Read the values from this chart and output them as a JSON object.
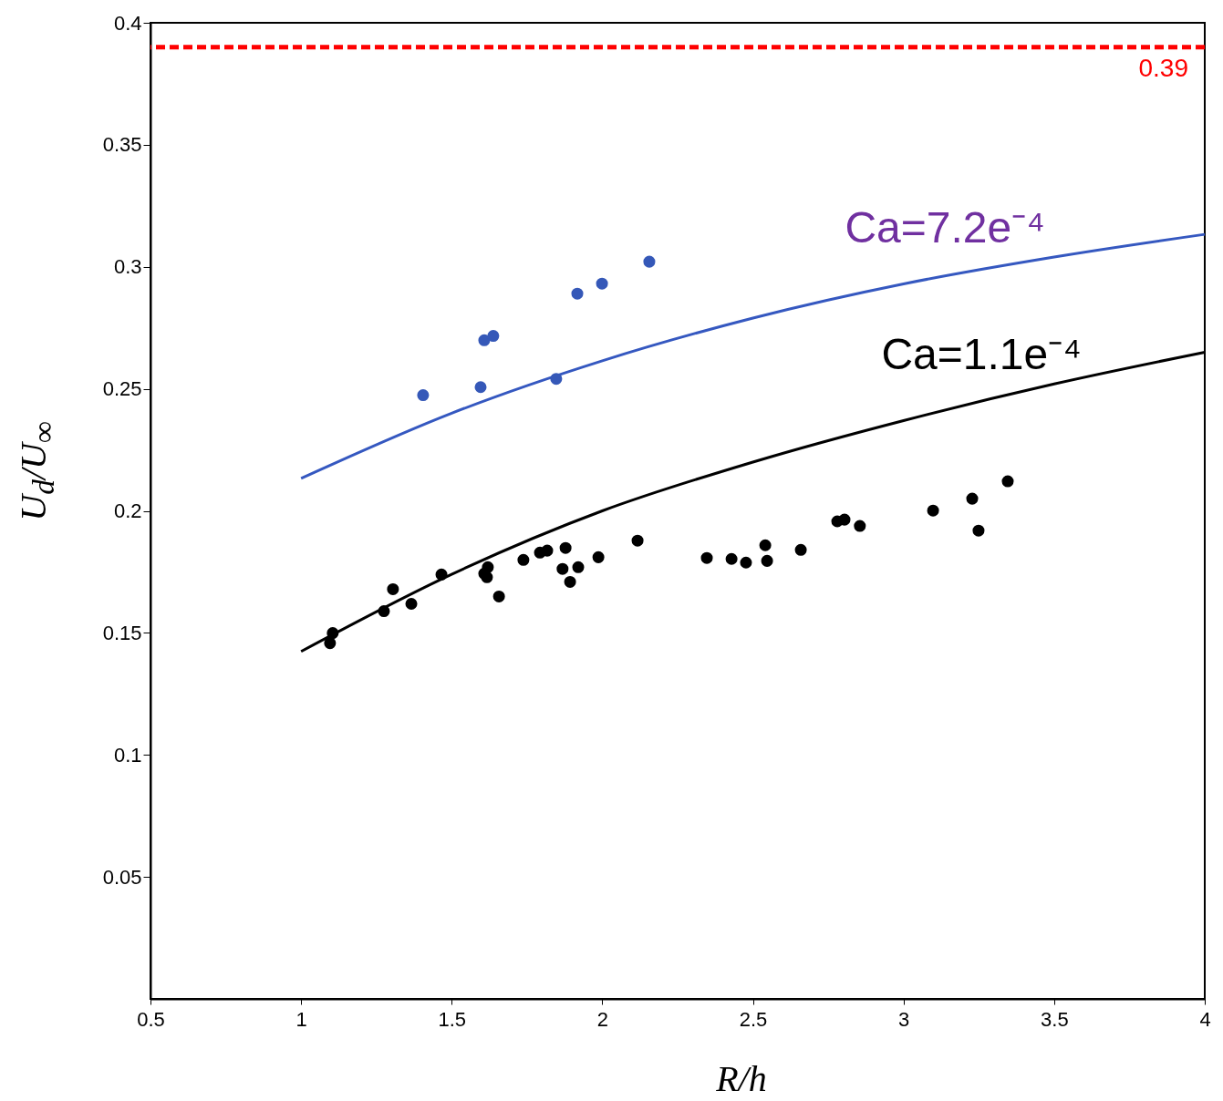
{
  "chart_data": {
    "type": "scatter",
    "xlabel": "R/h",
    "ylabel": "U$_{d}$/U$_{∞}$",
    "xlim": [
      0.5,
      4
    ],
    "ylim": [
      0,
      0.4
    ],
    "xticks": [
      0.5,
      1,
      1.5,
      2,
      2.5,
      3,
      3.5,
      4
    ],
    "yticks": [
      0.05,
      0.1,
      0.15,
      0.2,
      0.25,
      0.3,
      0.35,
      0.4
    ],
    "series": [
      {
        "type": "line",
        "color": "#3558c0",
        "x": [
          1,
          1.5,
          2,
          2.5,
          3,
          3.5,
          4
        ],
        "values": [
          0.2133,
          0.24,
          0.2615,
          0.279,
          0.293,
          0.304,
          0.3133
        ]
      },
      {
        "type": "line",
        "color": "#000000",
        "x": [
          1,
          1.5,
          2,
          2.5,
          3,
          3.5,
          4
        ],
        "values": [
          0.1424,
          0.174,
          0.2,
          0.22,
          0.237,
          0.252,
          0.265
        ]
      },
      {
        "color": "#3558b8",
        "x": [
          1.405,
          1.596,
          1.608,
          1.638,
          1.847,
          1.917,
          1.999,
          2.156
        ],
        "values": [
          0.2474,
          0.2507,
          0.2699,
          0.2717,
          0.2541,
          0.289,
          0.2931,
          0.3021
        ]
      },
      {
        "color": "#000000",
        "x": [
          1.096,
          1.105,
          1.275,
          1.305,
          1.366,
          1.466,
          1.608,
          1.62,
          1.617,
          1.657,
          1.738,
          1.793,
          1.817,
          1.878,
          1.868,
          1.893,
          1.92,
          1.987,
          2.117,
          2.347,
          2.429,
          2.477,
          2.541,
          2.547,
          2.659,
          2.78,
          2.804,
          2.855,
          3.098,
          3.228,
          3.249,
          3.346
        ],
        "values": [
          0.1458,
          0.1499,
          0.1589,
          0.1679,
          0.1619,
          0.1739,
          0.1743,
          0.1769,
          0.1728,
          0.1649,
          0.1799,
          0.1829,
          0.1837,
          0.1848,
          0.1762,
          0.1709,
          0.1769,
          0.181,
          0.1878,
          0.1807,
          0.1803,
          0.1788,
          0.1859,
          0.1795,
          0.184,
          0.1957,
          0.1964,
          0.1938,
          0.2001,
          0.205,
          0.1919,
          0.2121
        ]
      }
    ],
    "ref_lines": [
      {
        "axis": "y",
        "value": 0.39,
        "label": "0.39",
        "color": "#ff0000",
        "line_style": "dashed"
      }
    ],
    "annotations": [
      "Ca=7.2e⁻⁴",
      "Ca=1.1e⁻⁴"
    ]
  }
}
